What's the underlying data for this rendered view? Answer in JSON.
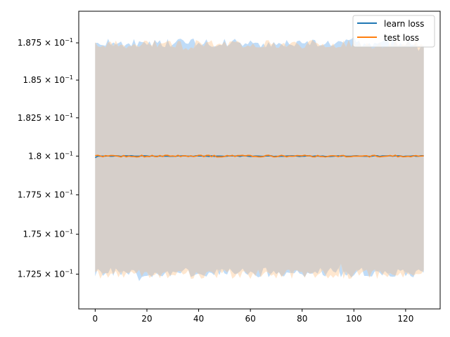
{
  "chart_data": {
    "type": "line",
    "title": "",
    "xlabel": "",
    "ylabel": "",
    "y_scale": "log",
    "xlim": [
      -6.35,
      133.35
    ],
    "ylim": [
      0.17035,
      0.18965
    ],
    "grid": false,
    "legend_position": "top-right",
    "x_ticks": [
      {
        "value": 0,
        "label": "0"
      },
      {
        "value": 20,
        "label": "20"
      },
      {
        "value": 40,
        "label": "40"
      },
      {
        "value": 60,
        "label": "60"
      },
      {
        "value": 80,
        "label": "80"
      },
      {
        "value": 100,
        "label": "100"
      },
      {
        "value": 120,
        "label": "120"
      }
    ],
    "y_ticks": [
      {
        "value": 0.1725,
        "label": "1.725 × 10",
        "exp": "−1"
      },
      {
        "value": 0.175,
        "label": "1.75 × 10",
        "exp": "−1"
      },
      {
        "value": 0.1775,
        "label": "1.775 × 10",
        "exp": "−1"
      },
      {
        "value": 0.18,
        "label": "1.8 × 10",
        "exp": "−1"
      },
      {
        "value": 0.1825,
        "label": "1.825 × 10",
        "exp": "−1"
      },
      {
        "value": 0.185,
        "label": "1.85 × 10",
        "exp": "−1"
      },
      {
        "value": 0.1875,
        "label": "1.875 × 10",
        "exp": "−1"
      }
    ],
    "x_range": [
      0,
      127
    ],
    "series": [
      {
        "name": "learn loss",
        "color": "#1f77b4",
        "band_color": "#a9d0f5",
        "mean_start": 0.1799,
        "mean_level": 0.18,
        "upper_band_level": 0.1875,
        "lower_band_level": 0.1726
      },
      {
        "name": "test loss",
        "color": "#ff7f0e",
        "band_color": "#ffd3a8",
        "mean_level": 0.18,
        "upper_band_level": 0.1874,
        "lower_band_level": 0.1725
      }
    ]
  }
}
